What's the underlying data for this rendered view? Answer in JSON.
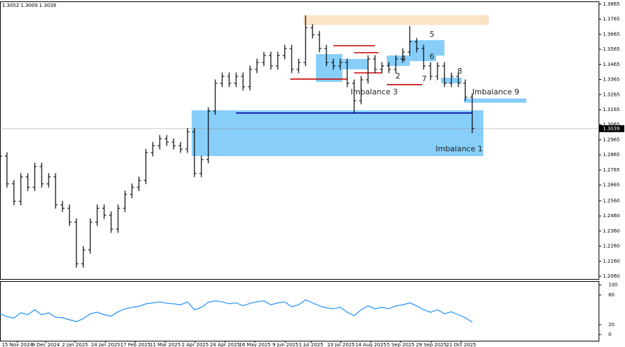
{
  "chart_data": [
    {
      "type": "ohlc",
      "header": "1.3052 1.3009 1.3039",
      "color": "#000000",
      "x": [
        0,
        1,
        2,
        3,
        4,
        5,
        6,
        7,
        8,
        9,
        10,
        11,
        12,
        13,
        14,
        15,
        16,
        17,
        18,
        19,
        20,
        21,
        22,
        23,
        24,
        25,
        26,
        27,
        28,
        29,
        30,
        31,
        32,
        33,
        34,
        35,
        36,
        37,
        38,
        39,
        40,
        41,
        42,
        43,
        44,
        45,
        46,
        47,
        48,
        49,
        50,
        51,
        52,
        53,
        54,
        55,
        56,
        57,
        58,
        59,
        60,
        61,
        62,
        63,
        64,
        65,
        66,
        67,
        68
      ],
      "open": [
        1.288,
        1.2857,
        1.2673,
        1.2557,
        1.2719,
        1.265,
        1.2788,
        1.2673,
        1.2719,
        1.2534,
        1.2511,
        1.2419,
        1.2143,
        1.2235,
        1.2419,
        1.2511,
        1.2465,
        1.2373,
        1.2511,
        1.2603,
        1.265,
        1.2696,
        1.288,
        1.2926,
        1.2972,
        1.2949,
        1.2926,
        1.2903,
        1.3018,
        1.2742,
        1.2834,
        1.3156,
        1.334,
        1.3386,
        1.334,
        1.3386,
        1.3317,
        1.3432,
        1.3478,
        1.3524,
        1.3455,
        1.3524,
        1.357,
        1.3432,
        1.3478,
        1.3708,
        1.3662,
        1.357,
        1.3478,
        1.3455,
        1.3478,
        1.334,
        1.3225,
        1.3363,
        1.3501,
        1.3432,
        1.3455,
        1.3432,
        1.3501,
        1.3547,
        1.3616,
        1.357,
        1.3455,
        1.3386,
        1.3455,
        1.334,
        1.3386,
        1.334,
        1.3248
      ],
      "high": [
        1.2905,
        1.2882,
        1.2698,
        1.2744,
        1.2744,
        1.2813,
        1.2813,
        1.2744,
        1.2744,
        1.2559,
        1.2536,
        1.2444,
        1.226,
        1.2444,
        1.2536,
        1.2536,
        1.249,
        1.2536,
        1.2628,
        1.2675,
        1.2721,
        1.2905,
        1.2951,
        1.2997,
        1.2997,
        1.2974,
        1.2951,
        1.3043,
        1.3043,
        1.2859,
        1.3181,
        1.3365,
        1.3411,
        1.3411,
        1.3411,
        1.3411,
        1.3457,
        1.3503,
        1.3549,
        1.3549,
        1.3549,
        1.3595,
        1.3595,
        1.3503,
        1.379,
        1.3733,
        1.3687,
        1.3595,
        1.3503,
        1.3503,
        1.3503,
        1.3365,
        1.3388,
        1.3526,
        1.3526,
        1.348,
        1.348,
        1.3526,
        1.3572,
        1.372,
        1.3641,
        1.3595,
        1.348,
        1.348,
        1.348,
        1.3411,
        1.3411,
        1.3365,
        1.3273
      ],
      "low": [
        1.2832,
        1.2648,
        1.2532,
        1.2532,
        1.2625,
        1.2625,
        1.2648,
        1.2648,
        1.2509,
        1.2486,
        1.2394,
        1.2118,
        1.2118,
        1.221,
        1.2394,
        1.244,
        1.2348,
        1.2348,
        1.2486,
        1.2578,
        1.2625,
        1.2671,
        1.2855,
        1.2901,
        1.2924,
        1.2901,
        1.2878,
        1.2878,
        1.2717,
        1.2717,
        1.2809,
        1.3131,
        1.3315,
        1.3315,
        1.3315,
        1.3292,
        1.3292,
        1.3407,
        1.3453,
        1.343,
        1.343,
        1.3499,
        1.3407,
        1.3407,
        1.3453,
        1.3637,
        1.3545,
        1.3453,
        1.343,
        1.343,
        1.3315,
        1.3143,
        1.32,
        1.3338,
        1.3407,
        1.3407,
        1.3407,
        1.3407,
        1.3476,
        1.3522,
        1.3545,
        1.343,
        1.3361,
        1.3361,
        1.3315,
        1.3315,
        1.3315,
        1.3223,
        1.3009
      ],
      "close": [
        1.2857,
        1.2673,
        1.2557,
        1.2719,
        1.265,
        1.2788,
        1.2673,
        1.2719,
        1.2534,
        1.2511,
        1.2419,
        1.2143,
        1.2235,
        1.2419,
        1.2511,
        1.2465,
        1.2373,
        1.2511,
        1.2603,
        1.265,
        1.2696,
        1.288,
        1.2926,
        1.2972,
        1.2949,
        1.2926,
        1.2903,
        1.3018,
        1.2742,
        1.2834,
        1.3156,
        1.334,
        1.3386,
        1.334,
        1.3386,
        1.3317,
        1.3432,
        1.3478,
        1.3524,
        1.3455,
        1.3524,
        1.357,
        1.3432,
        1.3478,
        1.3708,
        1.3662,
        1.357,
        1.3478,
        1.3455,
        1.3478,
        1.334,
        1.3225,
        1.3363,
        1.3501,
        1.3432,
        1.3455,
        1.3432,
        1.3501,
        1.3547,
        1.3616,
        1.357,
        1.3455,
        1.3386,
        1.3455,
        1.334,
        1.3386,
        1.334,
        1.3248,
        1.3039
      ],
      "last_price": 1.3039,
      "xlim": [
        0,
        86.2
      ],
      "ylim": [
        1.2042,
        1.3883
      ],
      "yticks": [
        1.3865,
        1.3765,
        1.3665,
        1.3565,
        1.3465,
        1.3365,
        1.3265,
        1.3165,
        1.3065,
        1.2965,
        1.2865,
        1.2765,
        1.2665,
        {
          "value": 1.256,
          "label": "1.2560"
        },
        {
          "value": 1.246,
          "label": "1.2460"
        },
        {
          "value": 1.236,
          "label": "1.2360"
        },
        {
          "value": 1.226,
          "label": "1.2260"
        },
        {
          "value": 1.216,
          "label": "1.2160"
        },
        {
          "value": 1.206,
          "label": "1.2060"
        }
      ],
      "zones": [
        {
          "x0": 43.7,
          "x1": 70.4,
          "y0": 1.3727,
          "y1": 1.3791,
          "color": "#fbe3c8"
        },
        {
          "x0": 27.6,
          "x1": 69.6,
          "y0": 1.2857,
          "y1": 1.3161,
          "color": "#87cefa",
          "label": "Imbalance 1"
        },
        {
          "x0": 66.8,
          "x1": 75.8,
          "y0": 1.3211,
          "y1": 1.3239,
          "color": "#87cefa",
          "label": "Imbalance 9"
        },
        {
          "x0": 59.0,
          "x1": 64.0,
          "y0": 1.3524,
          "y1": 1.3626,
          "color": "#87cefa",
          "label": "5"
        },
        {
          "x0": 59.0,
          "x1": 62.8,
          "y0": 1.3487,
          "y1": 1.3547,
          "color": "#87cefa",
          "label": "6"
        },
        {
          "x0": 55.7,
          "x1": 59.0,
          "y0": 1.3455,
          "y1": 1.3524,
          "color": "#87cefa",
          "label": "4"
        },
        {
          "x0": 45.5,
          "x1": 49.3,
          "y0": 1.3349,
          "y1": 1.3533,
          "color": "#87cefa",
          "label": "Imbalance 3"
        },
        {
          "x0": 49.0,
          "x1": 53.0,
          "y0": 1.3432,
          "y1": 1.3501,
          "color": "#87cefa"
        },
        {
          "x0": 63.5,
          "x1": 66.5,
          "y0": 1.334,
          "y1": 1.3377,
          "color": "#87cefa",
          "label": "8"
        }
      ],
      "levels": [
        {
          "x0": 41.8,
          "x1": 50.0,
          "value": 1.3368,
          "color": "#cc0000"
        },
        {
          "x0": 48.0,
          "x1": 54.0,
          "value": 1.3589,
          "color": "#cc0000"
        },
        {
          "x0": 51.0,
          "x1": 54.5,
          "value": 1.3543,
          "color": "#cc0000"
        },
        {
          "x0": 51.0,
          "x1": 55.0,
          "value": 1.3409,
          "color": "#cc0000",
          "label": "2"
        },
        {
          "x0": 55.7,
          "x1": 60.8,
          "value": 1.3331,
          "color": "#cc0000",
          "label": "7"
        },
        {
          "x0": 34.0,
          "x1": 68.0,
          "value": 1.3143,
          "color": "#0000aa"
        }
      ]
    },
    {
      "type": "line",
      "color": "#1e90ff",
      "x": [
        0,
        1,
        2,
        3,
        4,
        5,
        6,
        7,
        8,
        9,
        10,
        11,
        12,
        13,
        14,
        15,
        16,
        17,
        18,
        19,
        20,
        21,
        22,
        23,
        24,
        25,
        26,
        27,
        28,
        29,
        30,
        31,
        32,
        33,
        34,
        35,
        36,
        37,
        38,
        39,
        40,
        41,
        42,
        43,
        44,
        45,
        46,
        47,
        48,
        49,
        50,
        51,
        52,
        53,
        54,
        55,
        56,
        57,
        58,
        59,
        60,
        61,
        62,
        63,
        64,
        65,
        66,
        67,
        68
      ],
      "values": [
        42,
        36,
        33,
        44,
        40,
        50,
        40,
        44,
        35,
        34,
        30,
        26,
        32,
        42,
        45,
        40,
        37,
        46,
        52,
        55,
        57,
        62,
        64,
        66,
        63,
        62,
        60,
        66,
        50,
        55,
        65,
        68,
        66,
        62,
        64,
        58,
        63,
        66,
        68,
        60,
        64,
        66,
        56,
        60,
        70,
        64,
        58,
        54,
        52,
        55,
        45,
        38,
        50,
        58,
        52,
        55,
        52,
        58,
        60,
        64,
        58,
        50,
        45,
        50,
        42,
        46,
        40,
        34,
        25
      ],
      "xlim": [
        0,
        86.2
      ],
      "ylim": [
        -14,
        108
      ],
      "yticks": [
        100,
        80,
        20,
        0
      ],
      "xticks": [
        {
          "value": 2.5,
          "label": "15 Nov 2024"
        },
        {
          "value": 6.6,
          "label": "9 Dec 2024"
        },
        {
          "value": 10.8,
          "label": "2 Jan 2025"
        },
        {
          "value": 15.2,
          "label": "24 Jan 2025"
        },
        {
          "value": 19.5,
          "label": "17 Feb 2025"
        },
        {
          "value": 23.8,
          "label": "11 Mar 2025"
        },
        {
          "value": 28.1,
          "label": "2 Apr 2025"
        },
        {
          "value": 32.4,
          "label": "24 Apr 2025"
        },
        {
          "value": 36.7,
          "label": "16 May 2025"
        },
        {
          "value": 41.1,
          "label": "9 Jun 2025"
        },
        {
          "value": 44.8,
          "label": "1 Jul 2025"
        },
        {
          "value": 49.1,
          "label": "23 Jul 2025"
        },
        {
          "value": 53.4,
          "label": "14 Aug 2025"
        },
        {
          "value": 57.7,
          "label": "5 Sep 2025"
        },
        {
          "value": 62.1,
          "label": "29 Sep 2025"
        },
        {
          "value": 66.4,
          "label": "21 Oct 2025"
        }
      ]
    }
  ]
}
